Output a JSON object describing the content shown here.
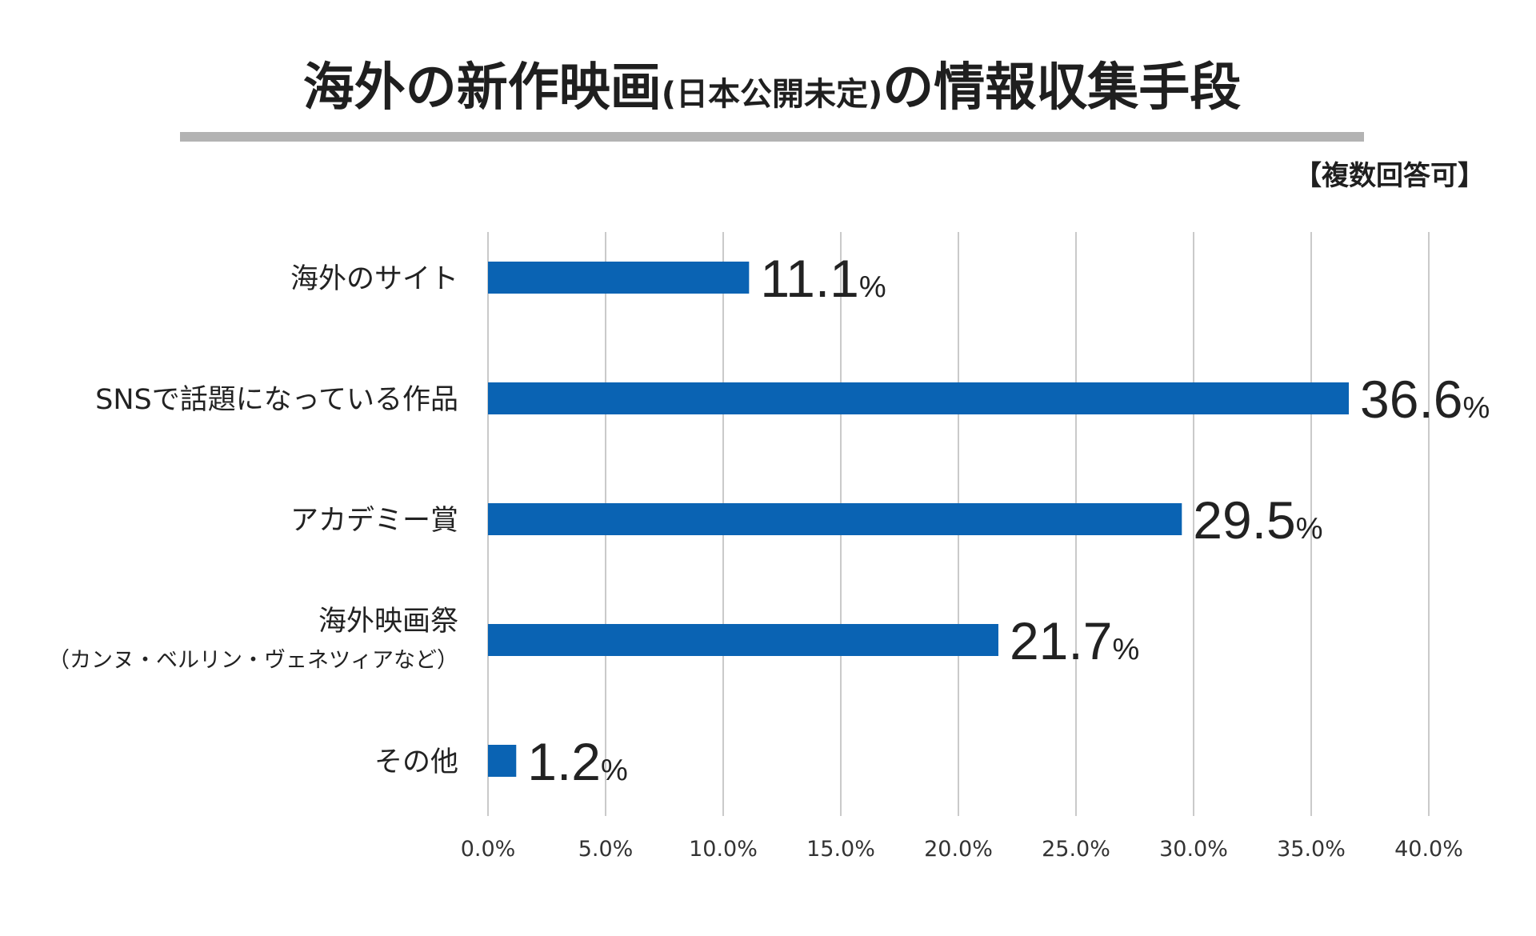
{
  "header": {
    "title_main_1": "海外の新作映画",
    "title_paren": "(日本公開未定)",
    "title_main_2": "の情報収集手段",
    "note": "【複数回答可】"
  },
  "colors": {
    "bar": "#0a63b3",
    "grid": "#b8b8b8",
    "title_rule": "#b3b3b3"
  },
  "chart_data": {
    "type": "bar",
    "orientation": "horizontal",
    "title": "海外の新作映画(日本公開未定)の情報収集手段",
    "subtitle": "【複数回答可】",
    "categories": [
      {
        "label": "海外のサイト",
        "sub": ""
      },
      {
        "label": "SNSで話題になっている作品",
        "sub": ""
      },
      {
        "label": "アカデミー賞",
        "sub": ""
      },
      {
        "label": "海外映画祭",
        "sub": "（カンヌ・ベルリン・ヴェネツィアなど）"
      },
      {
        "label": "その他",
        "sub": ""
      }
    ],
    "values": [
      11.1,
      36.6,
      29.5,
      21.7,
      1.2
    ],
    "value_labels": [
      "11.1",
      "36.6",
      "29.5",
      "21.7",
      "1.2"
    ],
    "value_unit": "%",
    "x_ticks": [
      "0.0%",
      "5.0%",
      "10.0%",
      "15.0%",
      "20.0%",
      "25.0%",
      "30.0%",
      "35.0%",
      "40.0%"
    ],
    "xlim": [
      0,
      40
    ],
    "x_tick_step": 5,
    "grid": "vertical",
    "xlabel": "",
    "ylabel": ""
  }
}
